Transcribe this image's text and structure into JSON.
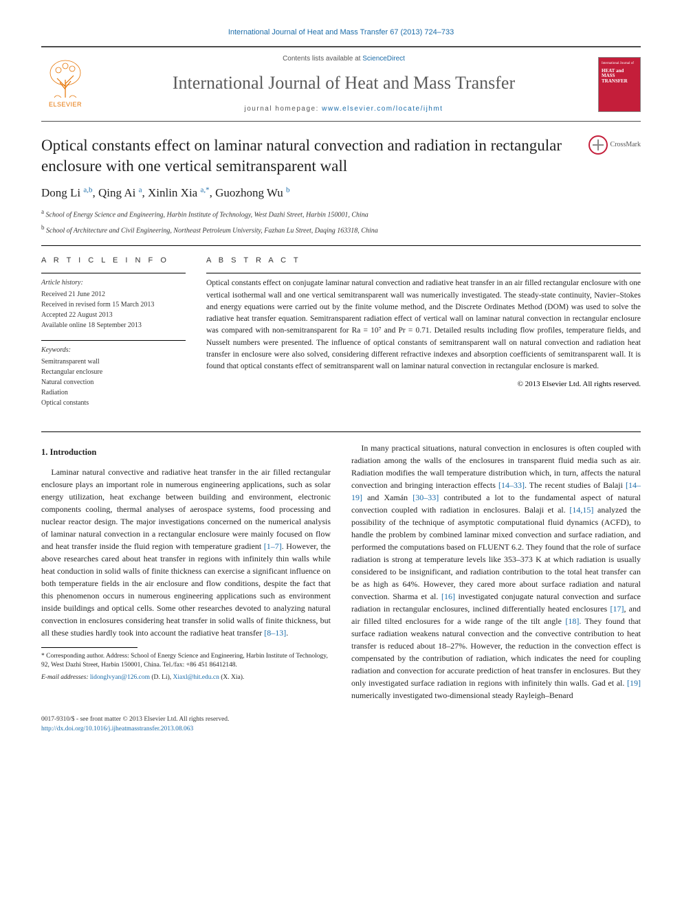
{
  "running_header": "International Journal of Heat and Mass Transfer 67 (2013) 724–733",
  "masthead": {
    "contents_prefix": "Contents lists available at ",
    "contents_link": "ScienceDirect",
    "journal_name": "International Journal of Heat and Mass Transfer",
    "homepage_prefix": "journal homepage: ",
    "homepage_link": "www.elsevier.com/locate/ijhmt",
    "elsevier_label": "ELSEVIER",
    "cover_small_text": "International Journal of",
    "cover_title": "HEAT and MASS TRANSFER"
  },
  "article": {
    "title": "Optical constants effect on laminar natural convection and radiation in rectangular enclosure with one vertical semitransparent wall",
    "crossmark_label": "CrossMark",
    "authors_html": "Dong Li <sup>a,b</sup>, Qing Ai <sup>a</sup>, Xinlin Xia <sup>a,*</sup>, Guozhong Wu <sup>b</sup>",
    "affiliations": [
      {
        "sup": "a",
        "text": "School of Energy Science and Engineering, Harbin Institute of Technology, West Dazhi Street, Harbin 150001, China"
      },
      {
        "sup": "b",
        "text": "School of Architecture and Civil Engineering, Northeast Petroleum University, Fazhan Lu Street, Daqing 163318, China"
      }
    ]
  },
  "info": {
    "heading": "A R T I C L E   I N F O",
    "history_label": "Article history:",
    "history": [
      "Received 21 June 2012",
      "Received in revised form 15 March 2013",
      "Accepted 22 August 2013",
      "Available online 18 September 2013"
    ],
    "keywords_label": "Keywords:",
    "keywords": [
      "Semitransparent wall",
      "Rectangular enclosure",
      "Natural convection",
      "Radiation",
      "Optical constants"
    ]
  },
  "abstract": {
    "heading": "A B S T R A C T",
    "text": "Optical constants effect on conjugate laminar natural convection and radiative heat transfer in an air filled rectangular enclosure with one vertical isothermal wall and one vertical semitransparent wall was numerically investigated. The steady-state continuity, Navier–Stokes and energy equations were carried out by the finite volume method, and the Discrete Ordinates Method (DOM) was used to solve the radiative heat transfer equation. Semitransparent radiation effect of vertical wall on laminar natural convection in rectangular enclosure was compared with non-semitransparent for Ra = 10⁷ and Pr = 0.71. Detailed results including flow profiles, temperature fields, and Nusselt numbers were presented. The influence of optical constants of semitransparent wall on natural convection and radiation heat transfer in enclosure were also solved, considering different refractive indexes and absorption coefficients of semitransparent wall. It is found that optical constants effect of semitransparent wall on laminar natural convection in rectangular enclosure is marked.",
    "copyright": "© 2013 Elsevier Ltd. All rights reserved."
  },
  "body": {
    "section_head": "1. Introduction",
    "para1": "Laminar natural convective and radiative heat transfer in the air filled rectangular enclosure plays an important role in numerous engineering applications, such as solar energy utilization, heat exchange between building and environment, electronic components cooling, thermal analyses of aerospace systems, food processing and nuclear reactor design. The major investigations concerned on the numerical analysis of laminar natural convection in a rectangular enclosure were mainly focused on flow and heat transfer inside the fluid region with temperature gradient ",
    "ref1": "[1–7]",
    "para1b": ". However, the above researches cared about heat transfer in regions with infinitely thin walls while heat conduction in solid walls of finite thickness can exercise a significant influence on both temperature fields in the air enclosure and flow conditions, despite the fact that this phenomenon occurs in numerous engineering applications such as environment inside buildings and optical cells. Some other researches devoted to analyzing natural convection in enclosures considering heat transfer in solid walls of finite thickness, but all these studies hardly took into account the radiative heat transfer ",
    "ref2": "[8–13]",
    "para1c": ".",
    "para2a": "In many practical situations, natural convection in enclosures is often coupled with radiation among the walls of the enclosures in transparent fluid media such as air. Radiation modifies the wall temperature distribution which, in turn, affects the natural convection and bringing interaction effects ",
    "ref3": "[14–33]",
    "para2b": ". The recent studies of Balaji ",
    "ref4": "[14–19]",
    "para2c": " and Xamán ",
    "ref5": "[30–33]",
    "para2d": " contributed a lot to the fundamental aspect of natural convection coupled with radiation in enclosures. Balaji et al. ",
    "ref6": "[14,15]",
    "para2e": " analyzed the possibility of the technique of asymptotic computational fluid dynamics (ACFD), to handle the problem by combined laminar mixed convection and surface radiation, and performed the computations based on FLUENT 6.2. They found that the role of surface radiation is strong at temperature levels like 353–373 K at which radiation is usually considered to be insignificant, and radiation contribution to the total heat transfer can be as high as 64%. However, they cared more about surface radiation and natural convection. Sharma et al. ",
    "ref7": "[16]",
    "para2f": " investigated conjugate natural convection and surface radiation in rectangular enclosures, inclined differentially heated enclosures ",
    "ref8": "[17]",
    "para2g": ", and air filled tilted enclosures for a wide range of the tilt angle ",
    "ref9": "[18]",
    "para2h": ". They found that surface radiation weakens natural convection and the convective contribution to heat transfer is reduced about 18–27%. However, the reduction in the convection effect is compensated by the contribution of radiation, which indicates the need for coupling radiation and convection for accurate prediction of heat transfer in enclosures. But they only investigated surface radiation in regions with infinitely thin walls. Gad et al. ",
    "ref10": "[19]",
    "para2i": " numerically investigated two-dimensional steady Rayleigh–Benard"
  },
  "footnote": {
    "corr_label": "* Corresponding author. Address: School of Energy Science and Engineering, Harbin Institute of Technology, 92, West Dazhi Street, Harbin 150001, China. Tel./fax: +86 451 86412148.",
    "email_label": "E-mail addresses:",
    "email1": "lidonglvyan@126.com",
    "email1_who": "(D. Li),",
    "email2": "Xiaxl@hit.edu.cn",
    "email2_who": "(X. Xia)."
  },
  "footer": {
    "line1": "0017-9310/$ - see front matter © 2013 Elsevier Ltd. All rights reserved.",
    "doi": "http://dx.doi.org/10.1016/j.ijheatmasstransfer.2013.08.063"
  },
  "colors": {
    "link": "#1a6ba8",
    "elsevier_orange": "#e57200",
    "cover_red": "#c41e3a",
    "text": "#222222",
    "rule": "#4a4a4a"
  }
}
